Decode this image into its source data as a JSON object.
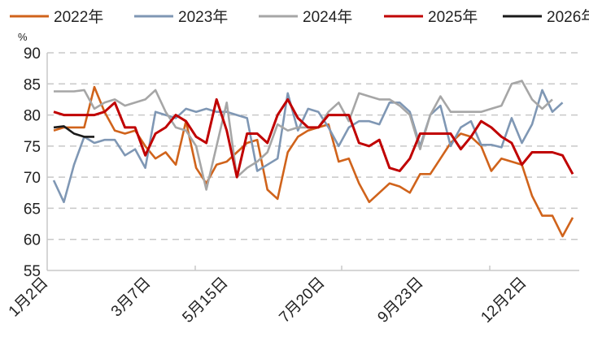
{
  "chart_data": {
    "type": "line",
    "ylabel": "%",
    "ylim": [
      55,
      90
    ],
    "yticks": [
      55,
      60,
      65,
      70,
      75,
      80,
      85,
      90
    ],
    "grid": true,
    "legend_position": "top",
    "x_tick_labels": [
      "1月2日",
      "3月7日",
      "5月15日",
      "7月20日",
      "9月23日",
      "12月2日"
    ],
    "series": [
      {
        "name": "2022年",
        "color": "#D0631B",
        "values": [
          77.5,
          78,
          78,
          78,
          84.5,
          80.5,
          77.5,
          77,
          77.5,
          75,
          73,
          74,
          72,
          79,
          71.5,
          69,
          72,
          72.5,
          74,
          75.5,
          76,
          68,
          66.5,
          74,
          76.5,
          77.5,
          78,
          78.5,
          72.5,
          73,
          69,
          66,
          67.5,
          69,
          68.5,
          67.5,
          70.5,
          70.5,
          73,
          75.5,
          77,
          76.5,
          75,
          71,
          73,
          72.5,
          72,
          67,
          63.8,
          63.8,
          60.5,
          63.5
        ]
      },
      {
        "name": "2023年",
        "color": "#7F97B4",
        "values": [
          69.5,
          66,
          72,
          76.5,
          75.5,
          76,
          76,
          73.5,
          74.5,
          71.5,
          80.5,
          80,
          79.5,
          81,
          80.5,
          81,
          80.5,
          80.5,
          80,
          79.5,
          71,
          72,
          73,
          83.5,
          77.5,
          81,
          80.5,
          78,
          75,
          78,
          79,
          79,
          78.5,
          82,
          82,
          80.5,
          75,
          80,
          81.5,
          75,
          78,
          79,
          75.2,
          75.2,
          74.8,
          79.5,
          75.5,
          78.5,
          84,
          80.5,
          82
        ]
      },
      {
        "name": "2024年",
        "color": "#A6A6A6",
        "values": [
          83.8,
          83.8,
          83.8,
          84,
          81,
          82,
          82.5,
          81.5,
          82,
          82.5,
          84,
          80.5,
          78,
          77.5,
          75,
          68,
          75,
          82,
          70,
          71.5,
          72.5,
          74,
          78.5,
          77.5,
          78,
          78,
          78,
          80.5,
          82,
          79,
          83.5,
          83,
          82.5,
          82.5,
          81.5,
          80,
          74.5,
          80,
          83,
          80.5,
          80.5,
          80.5,
          80.5,
          81,
          81.5,
          85,
          85.5,
          82.5,
          81,
          82.5
        ]
      },
      {
        "name": "2025年",
        "color": "#C00000",
        "values": [
          80.5,
          80,
          80,
          80,
          80,
          80.5,
          82,
          78,
          78,
          73.5,
          77,
          78,
          80,
          79,
          76.5,
          75.5,
          82.5,
          77.5,
          70,
          77,
          77,
          75.5,
          80,
          82.5,
          79.5,
          78,
          78,
          80,
          80,
          80,
          75.5,
          75,
          76,
          71.5,
          71,
          73,
          77,
          77,
          77,
          77,
          74.5,
          76.5,
          79,
          78,
          76.5,
          75.5,
          72,
          74,
          74,
          74,
          73.5,
          70.5
        ]
      },
      {
        "name": "2026年",
        "color": "#1A1A1A",
        "values": [
          78,
          78.2,
          77,
          76.5,
          76.5
        ]
      }
    ]
  }
}
